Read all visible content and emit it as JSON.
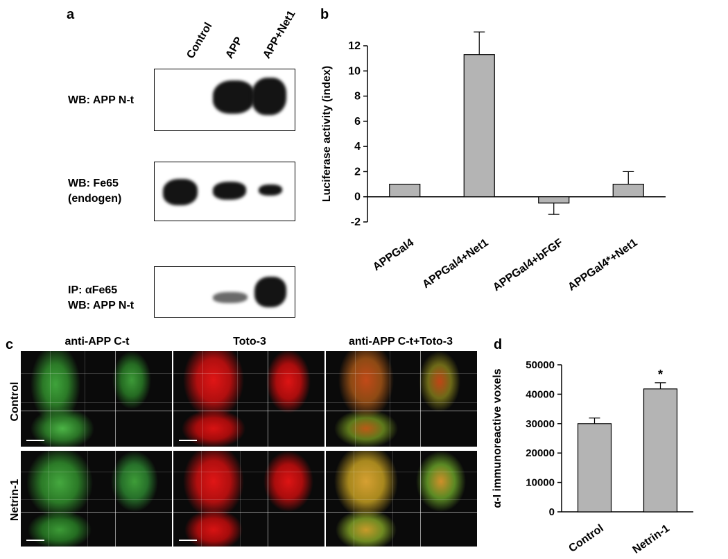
{
  "panel_a": {
    "letter": "a",
    "lanes": [
      "Control",
      "APP",
      "APP+Net1"
    ],
    "blots": [
      {
        "line1": "WB: APP N-t",
        "line2": ""
      },
      {
        "line1": "WB: Fe65",
        "line2": "(endogen)"
      },
      {
        "line1": "IP: αFe65",
        "line2": "WB: APP N-t"
      }
    ]
  },
  "panel_b": {
    "letter": "b",
    "chart_data": {
      "type": "bar",
      "categories": [
        "APPGal4",
        "APPGal4+Net1",
        "APPGal4+bFGF",
        "APPGal4*+Net1"
      ],
      "values": [
        1.0,
        11.3,
        -0.5,
        1.0
      ],
      "errors": [
        0,
        1.8,
        0.9,
        1.0
      ],
      "ylabel": "Luciferase activity (index)",
      "ylim": [
        -2,
        12
      ],
      "yticks": [
        -2,
        0,
        2,
        4,
        6,
        8,
        10,
        12
      ],
      "bar_color": "#b4b4b4"
    }
  },
  "panel_c": {
    "letter": "c",
    "columns": [
      "anti-APP C-t",
      "Toto-3",
      "anti-APP C-t+Toto-3"
    ],
    "rows": [
      "Control",
      "Netrin-1"
    ]
  },
  "panel_d": {
    "letter": "d",
    "chart_data": {
      "type": "bar",
      "categories": [
        "Control",
        "Netrin-1"
      ],
      "values": [
        30000,
        41800
      ],
      "errors": [
        1900,
        2100
      ],
      "ylabel": "α-I immunoreactive voxels",
      "ylim": [
        0,
        50000
      ],
      "yticks": [
        0,
        10000,
        20000,
        30000,
        40000,
        50000
      ],
      "annotations": [
        "",
        "*"
      ],
      "bar_color": "#b4b4b4"
    }
  }
}
